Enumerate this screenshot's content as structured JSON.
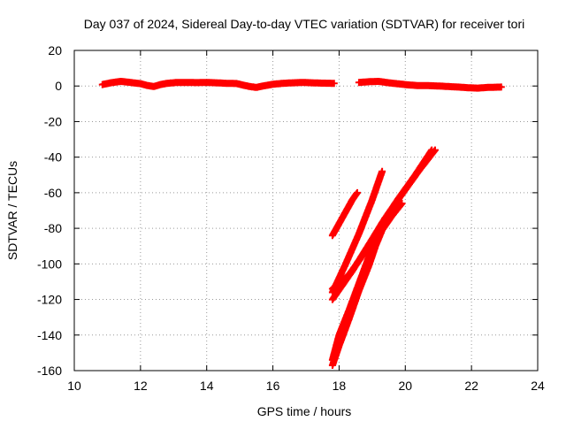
{
  "chart_data": {
    "type": "scatter",
    "title": "Day 037 of 2024, Sidereal Day-to-day VTEC variation (SDTVAR) for receiver tori",
    "xlabel": "GPS time / hours",
    "ylabel": "SDTVAR / TECUs",
    "xlim": [
      10,
      24
    ],
    "ylim": [
      -160,
      20
    ],
    "xticks": [
      10,
      12,
      14,
      16,
      18,
      20,
      22,
      24
    ],
    "yticks": [
      -160,
      -140,
      -120,
      -100,
      -80,
      -60,
      -40,
      -20,
      0,
      20
    ],
    "grid": true,
    "legend": "none",
    "marker": "plus",
    "series": [
      {
        "name": "SDTVAR",
        "color": "#ff0000",
        "segments": [
          [
            [
              10.85,
              0.8
            ],
            [
              11.1,
              1.8
            ],
            [
              11.4,
              2.6
            ],
            [
              11.7,
              2.0
            ],
            [
              12.0,
              1.3
            ],
            [
              12.2,
              0.3
            ],
            [
              12.4,
              -0.3
            ],
            [
              12.6,
              0.8
            ],
            [
              12.8,
              1.5
            ],
            [
              13.1,
              2.0
            ],
            [
              13.4,
              2.0
            ],
            [
              13.7,
              1.9
            ],
            [
              14.0,
              2.0
            ],
            [
              14.3,
              1.8
            ],
            [
              14.6,
              1.5
            ],
            [
              14.9,
              1.4
            ],
            [
              15.1,
              0.5
            ],
            [
              15.3,
              -0.3
            ],
            [
              15.5,
              -0.8
            ],
            [
              15.7,
              0.0
            ],
            [
              16.0,
              1.0
            ],
            [
              16.3,
              1.5
            ],
            [
              16.6,
              1.8
            ],
            [
              16.9,
              2.0
            ],
            [
              17.2,
              1.8
            ],
            [
              17.5,
              1.6
            ],
            [
              17.85,
              1.5
            ]
          ],
          [
            [
              18.6,
              2.0
            ],
            [
              18.9,
              2.4
            ],
            [
              19.2,
              2.6
            ],
            [
              19.5,
              1.8
            ],
            [
              19.8,
              1.2
            ],
            [
              20.1,
              0.6
            ],
            [
              20.4,
              0.2
            ],
            [
              20.7,
              0.2
            ],
            [
              21.0,
              0.0
            ],
            [
              21.3,
              -0.3
            ],
            [
              21.6,
              -0.6
            ],
            [
              21.9,
              -1.0
            ],
            [
              22.2,
              -1.2
            ],
            [
              22.5,
              -0.8
            ],
            [
              22.9,
              -0.6
            ]
          ],
          [
            [
              17.8,
              -84
            ],
            [
              18.1,
              -74
            ],
            [
              18.4,
              -64
            ],
            [
              18.55,
              -60
            ]
          ],
          [
            [
              17.8,
              -116
            ],
            [
              18.2,
              -100
            ],
            [
              18.6,
              -83
            ],
            [
              19.0,
              -64
            ],
            [
              19.3,
              -48
            ]
          ],
          [
            [
              17.8,
              -120
            ],
            [
              18.4,
              -104
            ],
            [
              18.9,
              -89
            ],
            [
              19.4,
              -74
            ],
            [
              19.9,
              -61
            ],
            [
              20.4,
              -48
            ],
            [
              20.9,
              -36
            ]
          ],
          [
            [
              17.8,
              -114
            ],
            [
              18.3,
              -106
            ],
            [
              18.8,
              -93
            ],
            [
              19.3,
              -77
            ],
            [
              19.8,
              -63
            ],
            [
              20.3,
              -50
            ],
            [
              20.8,
              -36
            ]
          ],
          [
            [
              17.8,
              -157
            ],
            [
              18.0,
              -146
            ],
            [
              18.3,
              -131
            ],
            [
              18.6,
              -115
            ],
            [
              18.9,
              -101
            ],
            [
              19.1,
              -90
            ],
            [
              19.3,
              -81
            ],
            [
              19.6,
              -73
            ],
            [
              19.9,
              -66
            ]
          ],
          [
            [
              17.8,
              -154
            ],
            [
              18.0,
              -140
            ],
            [
              18.3,
              -126
            ],
            [
              18.6,
              -111
            ],
            [
              18.9,
              -96
            ],
            [
              19.2,
              -83
            ],
            [
              19.4,
              -77
            ]
          ]
        ]
      }
    ]
  }
}
